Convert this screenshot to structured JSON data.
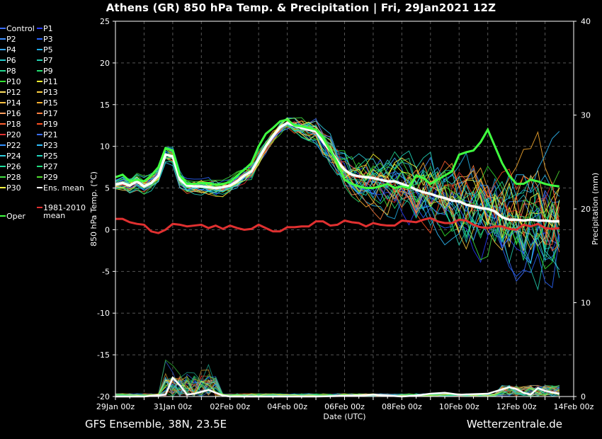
{
  "title": "Athens  (GR)  850 hPa Temp. & Precipitation | Fri, 29Jan2021 12Z",
  "footer": {
    "left": "GFS Ensemble, 38N, 23.5E",
    "right": "Wetterzentrale.de"
  },
  "chart_data": {
    "type": "line",
    "title": "Athens  (GR)  850 hPa Temp. & Precipitation | Fri, 29Jan2021 12Z",
    "xlabel": "Date (UTC)",
    "ylabel": "850 hPa Temp. (°C)",
    "y2label": "Precipitation (mm)",
    "ylim": [
      -20,
      25
    ],
    "y2lim": [
      0,
      40
    ],
    "yticks": [
      "25",
      "20",
      "15",
      "10",
      "5",
      "0",
      "-5",
      "-10",
      "-15",
      "-20"
    ],
    "y2ticks": [
      "40",
      "30",
      "20",
      "10",
      "0"
    ],
    "xticks": [
      "29Jan 00z",
      "31Jan 00z",
      "02Feb 00z",
      "04Feb 00z",
      "06Feb 00z",
      "08Feb 00z",
      "10Feb 00z",
      "12Feb 00z",
      "14Feb 00z"
    ],
    "grid": true,
    "legend_position": "left, outside plot",
    "legend": [
      {
        "label": "Control",
        "color": "#3a6cff"
      },
      {
        "label": "P1",
        "color": "#2a3cff"
      },
      {
        "label": "P2",
        "color": "#3a8cff"
      },
      {
        "label": "P3",
        "color": "#2a66ff"
      },
      {
        "label": "P4",
        "color": "#36a8ff"
      },
      {
        "label": "P5",
        "color": "#22b0e6"
      },
      {
        "label": "P6",
        "color": "#24c6c6"
      },
      {
        "label": "P7",
        "color": "#22d0b0"
      },
      {
        "label": "P8",
        "color": "#22d890"
      },
      {
        "label": "P9",
        "color": "#22e070"
      },
      {
        "label": "P10",
        "color": "#30e030"
      },
      {
        "label": "P11",
        "color": "#ffff30"
      },
      {
        "label": "P12",
        "color": "#ffe060"
      },
      {
        "label": "P13",
        "color": "#ffd040"
      },
      {
        "label": "P14",
        "color": "#ffc040"
      },
      {
        "label": "P15",
        "color": "#ffb030"
      },
      {
        "label": "P16",
        "color": "#ffa060"
      },
      {
        "label": "P17",
        "color": "#ff8040"
      },
      {
        "label": "P18",
        "color": "#ff6030"
      },
      {
        "label": "P19",
        "color": "#ff5020"
      },
      {
        "label": "P20",
        "color": "#e03030"
      },
      {
        "label": "P21",
        "color": "#3a70ff"
      },
      {
        "label": "P22",
        "color": "#3090ff"
      },
      {
        "label": "P23",
        "color": "#30c0ff"
      },
      {
        "label": "P24",
        "color": "#30d0e0"
      },
      {
        "label": "P25",
        "color": "#20d8c0"
      },
      {
        "label": "P26",
        "color": "#20e0a0"
      },
      {
        "label": "P27",
        "color": "#20e080"
      },
      {
        "label": "P28",
        "color": "#40e040"
      },
      {
        "label": "P29",
        "color": "#50e030"
      },
      {
        "label": "P30",
        "color": "#ffff40"
      },
      {
        "label": "Ens. mean",
        "color": "#ffffff"
      },
      {
        "label": "1981-2010\nmean",
        "color": "#e03030"
      },
      {
        "label": "Oper",
        "color": "#40ff40"
      }
    ],
    "series": [
      {
        "name": "Ens. mean",
        "color": "#ffffff",
        "x": [
          0,
          6,
          12,
          18,
          24,
          30,
          36,
          42,
          48,
          54,
          60,
          66,
          72,
          78,
          84,
          90,
          96,
          102,
          108,
          114,
          120,
          126,
          132,
          138,
          144,
          150,
          156,
          162,
          168,
          174,
          180,
          186,
          192,
          198,
          204,
          210,
          216,
          222,
          228,
          234,
          240,
          246,
          252,
          258,
          264,
          270,
          276,
          282,
          288,
          294,
          300,
          306,
          312,
          318,
          324,
          330,
          336,
          342,
          348,
          354,
          360,
          366,
          372
        ],
        "y": [
          5.4,
          5.6,
          5.3,
          5.8,
          5.2,
          5.6,
          6.5,
          9.0,
          8.8,
          6.0,
          5.3,
          5.2,
          5.2,
          5.1,
          5.0,
          5.1,
          5.3,
          5.8,
          6.5,
          7.0,
          8.5,
          10.0,
          11.2,
          12.3,
          12.8,
          12.5,
          12.2,
          12.0,
          11.8,
          10.5,
          9.5,
          8.2,
          7.2,
          6.6,
          6.4,
          6.3,
          6.2,
          6.0,
          5.8,
          5.8,
          5.5,
          5.2,
          4.8,
          4.5,
          4.3,
          4.0,
          3.8,
          3.5,
          3.4,
          3.0,
          2.8,
          2.6,
          2.5,
          2.2,
          1.5,
          1.2,
          1.2,
          1.1,
          1.2,
          1.1,
          1.1,
          1.0,
          1.0
        ]
      },
      {
        "name": "Oper",
        "color": "#40ff40",
        "x": [
          0,
          6,
          12,
          18,
          24,
          30,
          36,
          42,
          48,
          54,
          60,
          66,
          72,
          78,
          84,
          90,
          96,
          102,
          108,
          114,
          120,
          126,
          132,
          138,
          144,
          150,
          156,
          162,
          168,
          174,
          180,
          186,
          192,
          198,
          204,
          210,
          216,
          222,
          228,
          234,
          240,
          246,
          252,
          258,
          264,
          270,
          276,
          282,
          288,
          294,
          300,
          306,
          312,
          318,
          324,
          330,
          336,
          342,
          348,
          354,
          360,
          366,
          372
        ],
        "y": [
          6.3,
          6.6,
          5.8,
          6.0,
          5.8,
          6.5,
          7.5,
          9.8,
          9.5,
          6.5,
          5.5,
          5.5,
          5.6,
          5.6,
          5.4,
          5.5,
          5.7,
          6.5,
          7.2,
          8.0,
          10.0,
          11.5,
          12.2,
          13.0,
          13.2,
          12.5,
          12.4,
          12.2,
          12.0,
          11.0,
          9.5,
          8.0,
          6.0,
          5.5,
          5.2,
          5.0,
          5.0,
          5.2,
          5.5,
          5.0,
          5.2,
          5.0,
          6.5,
          6.2,
          5.5,
          6.0,
          6.5,
          7.0,
          9.0,
          9.3,
          9.5,
          10.5,
          12.0,
          10.0,
          8.0,
          6.5,
          5.5,
          5.5,
          6.0,
          5.8,
          5.5,
          5.3,
          5.2
        ]
      },
      {
        "name": "1981-2010 mean",
        "color": "#e03030",
        "x": [
          0,
          6,
          12,
          18,
          24,
          30,
          36,
          42,
          48,
          54,
          60,
          66,
          72,
          78,
          84,
          90,
          96,
          102,
          108,
          114,
          120,
          126,
          132,
          138,
          144,
          150,
          156,
          162,
          168,
          174,
          180,
          186,
          192,
          198,
          204,
          210,
          216,
          222,
          228,
          234,
          240,
          246,
          252,
          258,
          264,
          270,
          276,
          282,
          288,
          294,
          300,
          306,
          312,
          318,
          324,
          330,
          336,
          342,
          348,
          354,
          360,
          366,
          372
        ],
        "y": [
          1.3,
          1.3,
          0.9,
          0.7,
          0.6,
          -0.2,
          -0.4,
          0.0,
          0.7,
          0.6,
          0.4,
          0.5,
          0.6,
          0.2,
          0.5,
          0.1,
          0.5,
          0.2,
          0.0,
          0.1,
          0.6,
          0.2,
          -0.2,
          -0.2,
          0.3,
          0.3,
          0.4,
          0.4,
          1.0,
          1.0,
          0.5,
          0.6,
          1.1,
          0.9,
          0.8,
          0.4,
          0.8,
          0.6,
          0.5,
          0.5,
          1.1,
          1.0,
          0.9,
          1.2,
          1.4,
          1.0,
          0.8,
          0.8,
          1.2,
          1.1,
          0.6,
          0.3,
          0.2,
          0.4,
          0.4,
          0.1,
          0.0,
          0.6,
          0.4,
          0.7,
          0.2,
          0.1,
          0.2
        ]
      },
      {
        "name": "Precip ensemble mean",
        "color": "#ffffff",
        "axis": "y2",
        "x": [
          0,
          24,
          42,
          48,
          54,
          60,
          66,
          72,
          78,
          84,
          90,
          96,
          120,
          168,
          204,
          216,
          240,
          252,
          264,
          276,
          288,
          312,
          330,
          336,
          342,
          348,
          354,
          360,
          372
        ],
        "y": [
          0,
          0,
          0.2,
          2.0,
          1.2,
          0.2,
          0.3,
          0.5,
          0.7,
          0.4,
          0.1,
          0,
          0,
          0,
          0.1,
          0.2,
          0,
          0.1,
          0.3,
          0.4,
          0.2,
          0.3,
          1.0,
          0.8,
          0.4,
          0.2,
          0.9,
          0.6,
          0.3
        ]
      }
    ]
  }
}
